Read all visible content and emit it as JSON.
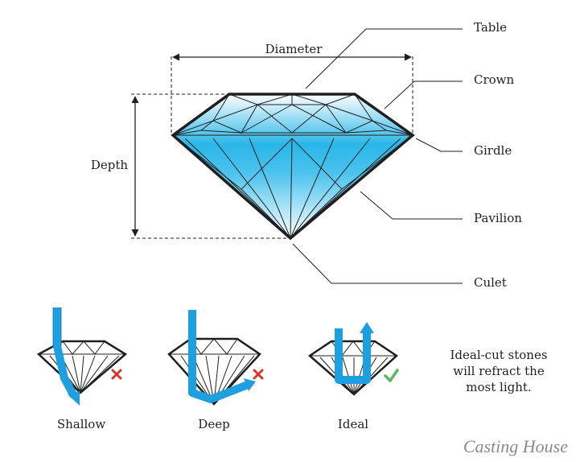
{
  "labels": {
    "table": "Table",
    "crown": "Crown",
    "girdle": "Girdle",
    "pavilion": "Pavilion",
    "culet": "Culet",
    "diameter": "Diameter",
    "depth": "Depth"
  },
  "cuts": [
    {
      "name": "Shallow",
      "result": "fail"
    },
    {
      "name": "Deep",
      "result": "fail"
    },
    {
      "name": "Ideal",
      "result": "pass"
    }
  ],
  "note": [
    "Ideal-cut stones",
    "will refract the",
    "most light."
  ],
  "brand": "Casting House",
  "colors": {
    "diamond_blue": "#29b6e8",
    "light_path": "#1e9fdf",
    "fail_mark": "#d9342b",
    "pass_mark": "#5cb85c",
    "outline": "#1f1f1f"
  },
  "icons": {
    "fail": "red-x-icon",
    "pass": "green-check-icon"
  }
}
